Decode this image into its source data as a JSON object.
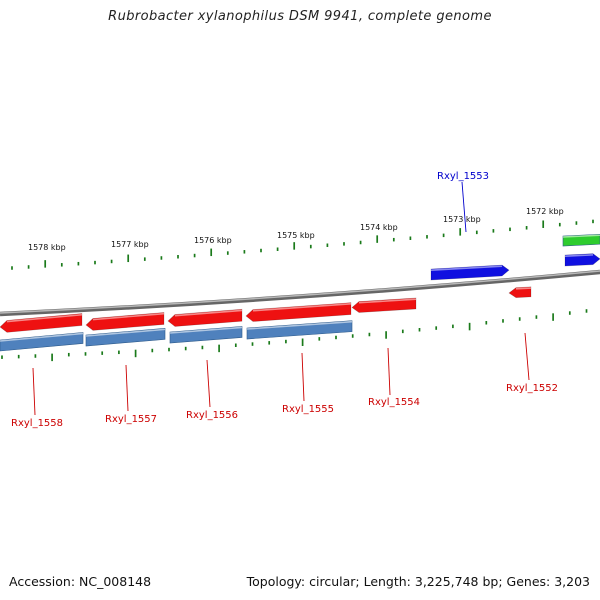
{
  "title": "Rubrobacter xylanophilus DSM 9941, complete genome",
  "footer": {
    "accession": "Accession: NC_008148",
    "topology": "Topology: circular; Length: 3,225,748 bp; Genes: 3,203"
  },
  "colors": {
    "backbone": "#8a8a8a",
    "tick": "#1a7a1a",
    "forward_gene": "#1010e0",
    "reverse_gene": "#ee1111",
    "reverse_cds_band": "#4f81bd",
    "forward_cds_band": "#2ecc2e",
    "label_forward": "#0000cc",
    "label_reverse": "#cc0000"
  },
  "ruler": {
    "labels": [
      "1578 kbp",
      "1577 kbp",
      "1576 kbp",
      "1575 kbp",
      "1574 kbp",
      "1573 kbp",
      "1572 kbp"
    ]
  },
  "genes": [
    {
      "name": "Rxyl_1553",
      "strand": "forward"
    },
    {
      "name": "Rxyl_1552",
      "strand": "reverse"
    },
    {
      "name": "Rxyl_1554",
      "strand": "reverse"
    },
    {
      "name": "Rxyl_1555",
      "strand": "reverse"
    },
    {
      "name": "Rxyl_1556",
      "strand": "reverse"
    },
    {
      "name": "Rxyl_1557",
      "strand": "reverse"
    },
    {
      "name": "Rxyl_1558",
      "strand": "reverse"
    }
  ]
}
